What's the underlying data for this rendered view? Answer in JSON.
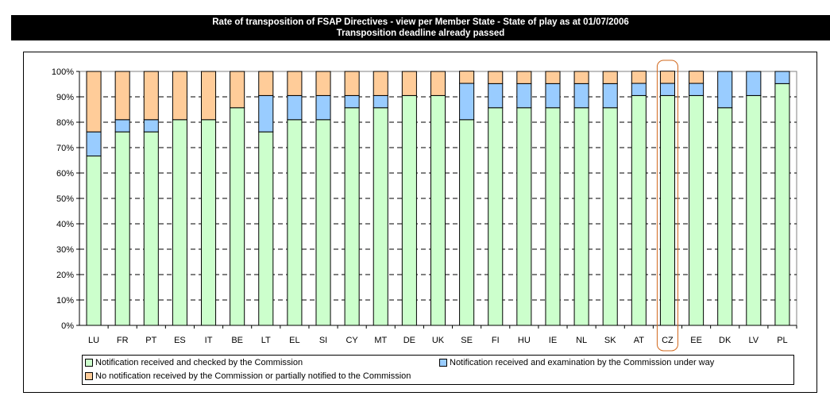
{
  "chart_data": {
    "type": "bar",
    "stacked": true,
    "title": "Rate of transposition of FSAP Directives - view per Member State - State of play as at 01/07/2006",
    "subtitle": "Transposition deadline already passed",
    "xlabel": "",
    "ylabel": "",
    "ylim": [
      0,
      100
    ],
    "y_ticks": [
      "0%",
      "10%",
      "20%",
      "30%",
      "40%",
      "50%",
      "60%",
      "70%",
      "80%",
      "90%",
      "100%"
    ],
    "grid": "horizontal dashed",
    "legend_position": "bottom",
    "highlighted_category": "CZ",
    "categories": [
      "LU",
      "FR",
      "PT",
      "ES",
      "IT",
      "BE",
      "LT",
      "EL",
      "SI",
      "CY",
      "MT",
      "DE",
      "UK",
      "SE",
      "FI",
      "HU",
      "IE",
      "NL",
      "SK",
      "AT",
      "CZ",
      "EE",
      "DK",
      "LV",
      "PL"
    ],
    "series": [
      {
        "name": "Notification received and checked by the Commission",
        "color": "#ccffcc",
        "values": [
          66.7,
          76.2,
          76.2,
          81.0,
          81.0,
          85.7,
          76.2,
          81.0,
          81.0,
          85.7,
          85.7,
          90.5,
          90.5,
          81.0,
          85.7,
          85.7,
          85.7,
          85.7,
          85.7,
          90.5,
          90.5,
          90.5,
          85.7,
          90.5,
          95.2
        ]
      },
      {
        "name": "Notification received and examination by the Commission under way",
        "color": "#99ccff",
        "values": [
          9.5,
          4.8,
          4.8,
          0,
          0,
          0,
          14.3,
          9.5,
          9.5,
          4.8,
          4.8,
          0,
          0,
          14.3,
          9.5,
          9.5,
          9.5,
          9.5,
          9.5,
          4.8,
          4.8,
          4.8,
          14.3,
          9.5,
          4.8
        ]
      },
      {
        "name": "No notification received by the Commission or partially notified to the Commission",
        "color": "#ffcc99",
        "values": [
          23.8,
          19.0,
          19.0,
          19.0,
          19.0,
          14.3,
          9.5,
          9.5,
          9.5,
          9.5,
          9.5,
          9.5,
          9.5,
          4.8,
          4.8,
          4.8,
          4.8,
          4.8,
          4.8,
          4.8,
          4.8,
          4.8,
          0,
          0,
          0
        ]
      }
    ]
  }
}
